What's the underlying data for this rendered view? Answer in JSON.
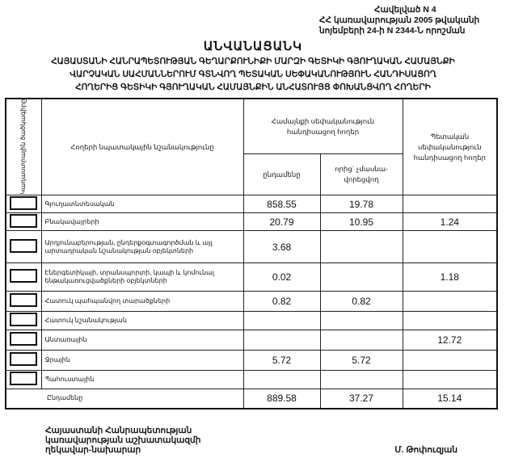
{
  "annex": {
    "line1": "Հավելված N 4",
    "line2": "ՀՀ կառավարության 2005 թվականի",
    "line3": "նոյեմբերի 24-ի N 2344-Ն որոշման"
  },
  "title": "ԱՆՎԱՆԱՑԱՆԿ",
  "subtitle": [
    "ՀԱՅԱՍՏԱՆԻ ՀԱՆՐԱՊԵՏՈՒԹՅԱՆ ԳԵՂԱՐՔՈՒՆԻՔԻ ՄԱՐԶԻ ԳԵՏԻԿԻ ԳՅՈՒՂԱԿԱՆ ՀԱՄԱՅՆՔԻ",
    "ՎԱՐՉԱԿԱՆ ՍԱՀՄԱՆՆԵՐՈՒՄ ԳՏՆՎՈՂ ՊԵՏԱԿԱՆ ՍԵՓԱԿԱՆՈՒԹՅՈՒՆ ՀԱՆԴԻՍԱՑՈՂ",
    "ՀՈՂԵՐԻՑ ԳԵՏԻԿԻ ԳՅՈՒՂԱԿԱՆ ՀԱՄԱՅՆՔԻՆ ԱՆՀԱՏՈՒՅՑ ՓՈԽԱՆՑՎՈՂ ՀՈՂԵՐԻ"
  ],
  "table": {
    "headers": {
      "code": "Կադաստրային ծածկագիրը",
      "purpose": "Հողերի նպատակային նշանակությունը",
      "community": "Համայնքի սեփականություն հանդիսացող հողեր",
      "total": "ընդամենը",
      "non_privatized": "որից` չմասնա-վորեցվող",
      "state": "Պետական սեփականություն հանդիսացող հողեր"
    },
    "rows": [
      {
        "purpose": "Գյուղատնտեսական",
        "total": "858.55",
        "non_privatized": "19.78",
        "state": ""
      },
      {
        "purpose": "Բնակավայրերի",
        "total": "20.79",
        "non_privatized": "10.95",
        "state": "1.24"
      },
      {
        "purpose": "Արդյունաբերության, ընդերքօգտագործման և այլ արտադրական նշանակության օբյեկտների",
        "total": "3.68",
        "non_privatized": "",
        "state": ""
      },
      {
        "purpose": "Էներգետիկայի, տրանսպորտի, կապի և կոմունալ ենթակառուցվածքների օբյեկտների",
        "total": "0.02",
        "non_privatized": "",
        "state": "1.18"
      },
      {
        "purpose": "Հատուկ պահպանվող տարածքների",
        "total": "0.82",
        "non_privatized": "0.82",
        "state": ""
      },
      {
        "purpose": "Հատուկ նշանակության",
        "total": "",
        "non_privatized": "",
        "state": ""
      },
      {
        "purpose": "Անտառային",
        "total": "",
        "non_privatized": "",
        "state": "12.72"
      },
      {
        "purpose": "Ջրային",
        "total": "5.72",
        "non_privatized": "5.72",
        "state": ""
      },
      {
        "purpose": "Պահուստային",
        "total": "",
        "non_privatized": "",
        "state": ""
      }
    ],
    "totals": {
      "label": "Ընդամենը",
      "total": "889.58",
      "non_privatized": "37.27",
      "state": "15.14"
    }
  },
  "footer": {
    "position": [
      "Հայաստանի Հանրապետության",
      "կառավարության աշխատակազմի",
      "ղեկավար-նախարար"
    ],
    "name": "Մ. Թոփուզյան"
  }
}
